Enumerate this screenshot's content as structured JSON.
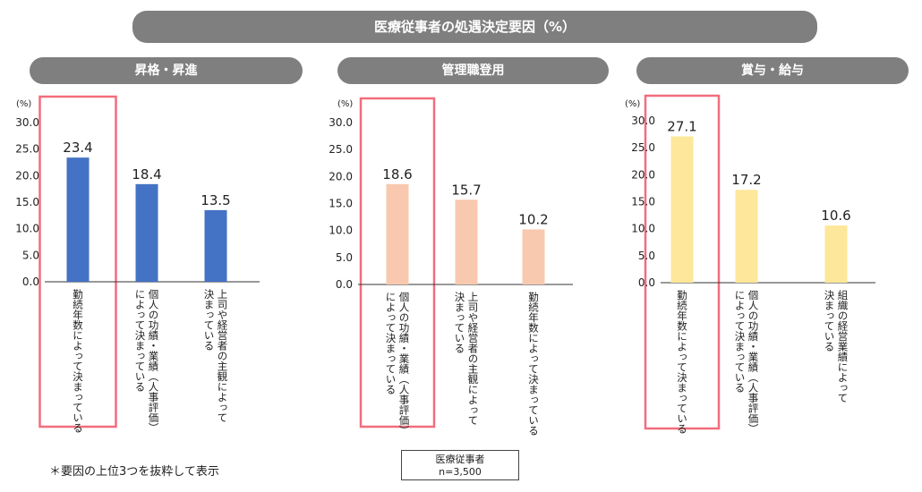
{
  "main_title": "医療従事者の処遇決定要因（%）",
  "note": "＊要因の上位3つを抜粋して表示",
  "sample": {
    "label": "医療従事者",
    "n": "n=3,500"
  },
  "colors": {
    "header_bg": "#7f7f7f",
    "highlight": "#f26d7d",
    "axis": "#333333"
  },
  "chart_data": [
    {
      "type": "bar",
      "title": "昇格・昇進",
      "unit": "(%)",
      "ylim": [
        0,
        30
      ],
      "yticks": [
        "0.0",
        "5.0",
        "10.0",
        "15.0",
        "20.0",
        "25.0",
        "30.0"
      ],
      "bar_color": "#4472c4",
      "categories": [
        [
          "勤続年数によって決まっている"
        ],
        [
          "個人の功績・業績（人事評価）",
          "によって決まっている"
        ],
        [
          "上司や経営者の主観によって",
          "決まっている"
        ]
      ],
      "values": [
        23.4,
        18.4,
        13.5
      ],
      "value_labels": [
        "23.4",
        "18.4",
        "13.5"
      ],
      "highlight_index": 0
    },
    {
      "type": "bar",
      "title": "管理職登用",
      "unit": "(%)",
      "ylim": [
        0,
        30
      ],
      "yticks": [
        "0.0",
        "5.0",
        "10.0",
        "15.0",
        "20.0",
        "25.0",
        "30.0"
      ],
      "bar_color": "#f8c9af",
      "categories": [
        [
          "個人の功績・業績（人事評価）",
          "によって決まっている"
        ],
        [
          "上司や経営者の主観によって",
          "決まっている"
        ],
        [
          "勤続年数によって決まっている"
        ]
      ],
      "values": [
        18.6,
        15.7,
        10.2
      ],
      "value_labels": [
        "18.6",
        "15.7",
        "10.2"
      ],
      "highlight_index": 0
    },
    {
      "type": "bar",
      "title": "賞与・給与",
      "unit": "(%)",
      "ylim": [
        0,
        30
      ],
      "yticks": [
        "0.0",
        "5.0",
        "10.0",
        "15.0",
        "20.0",
        "25.0",
        "30.0"
      ],
      "bar_color": "#fde79a",
      "categories": [
        [
          "勤続年数によって決まっている"
        ],
        [
          "個人の功績・業績（人事評価）",
          "によって決まっている"
        ],
        [
          "組織の経営業績によって",
          "決まっている"
        ]
      ],
      "values": [
        27.1,
        17.2,
        10.6
      ],
      "value_labels": [
        "27.1",
        "17.2",
        "10.6"
      ],
      "highlight_index": 0
    }
  ]
}
